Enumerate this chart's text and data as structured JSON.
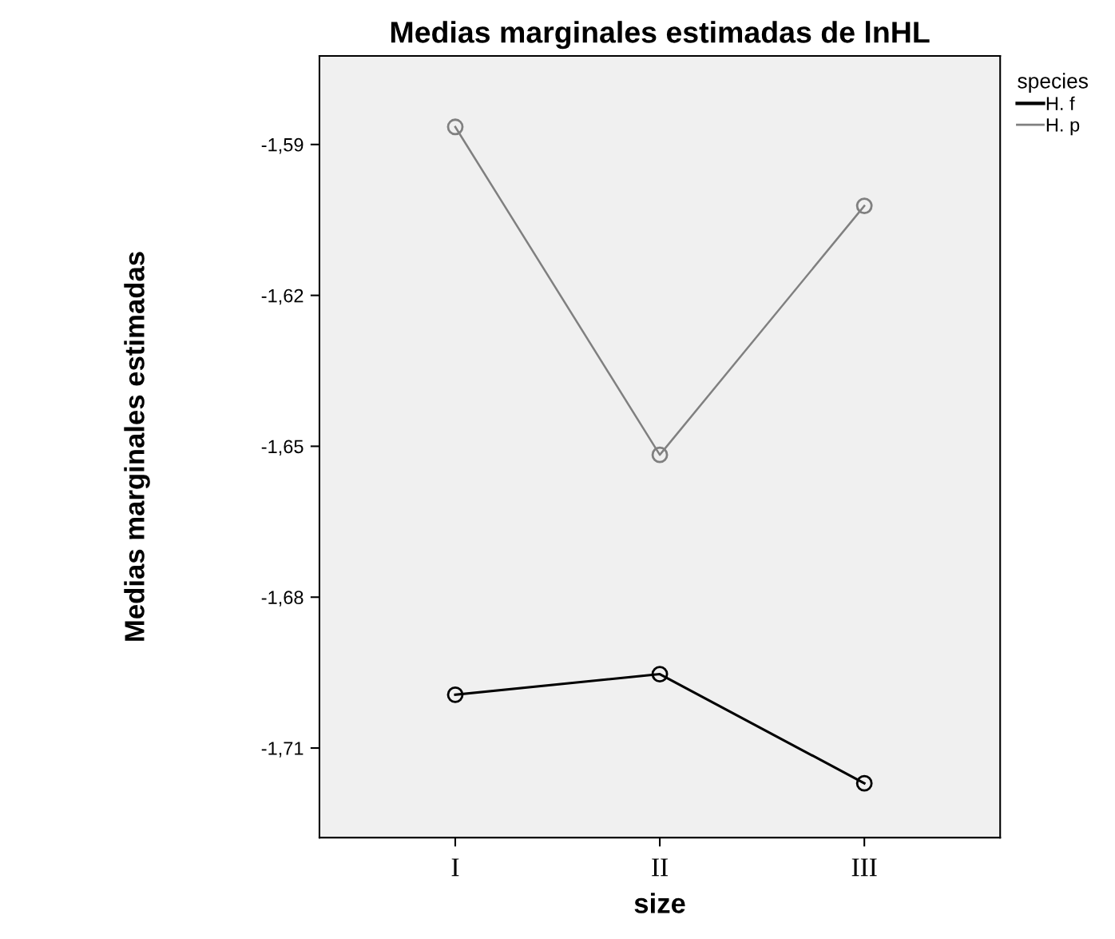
{
  "chart_data": {
    "type": "line",
    "title": "Medias marginales estimadas de lnHL",
    "xlabel": "size",
    "ylabel": "Medias marginales estimadas",
    "legend_title": "species",
    "categories": [
      "I",
      "II",
      "III"
    ],
    "series": [
      {
        "name": "H. f",
        "color": "#000000",
        "values": [
          -1.6994,
          -1.6953,
          -1.717
        ]
      },
      {
        "name": "H. p",
        "color": "#808080",
        "values": [
          -1.5865,
          -1.6517,
          -1.6022
        ]
      }
    ],
    "ylim": [
      -1.7278,
      -1.5724
    ],
    "yticks": [
      {
        "value": -1.71,
        "label": "-1,71"
      },
      {
        "value": -1.68,
        "label": "-1,68"
      },
      {
        "value": -1.65,
        "label": "-1,65"
      },
      {
        "value": -1.62,
        "label": "-1,62"
      },
      {
        "value": -1.59,
        "label": "-1,59"
      }
    ],
    "marker": "circle",
    "line_style": "solid",
    "grid": false,
    "legend": "top right"
  }
}
